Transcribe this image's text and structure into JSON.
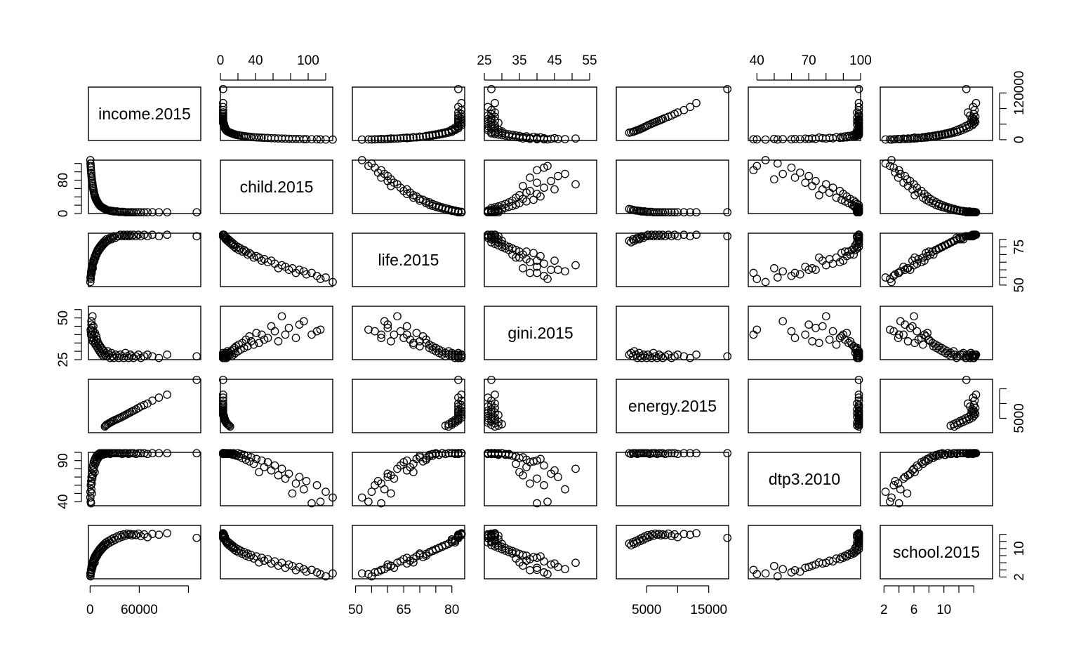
{
  "chart_data": {
    "type": "scatter",
    "kind": "scatterplot-matrix",
    "variables": [
      "income.2015",
      "child.2015",
      "life.2015",
      "gini.2015",
      "energy.2015",
      "dtp3.2010",
      "school.2015"
    ],
    "ranges": {
      "income.2015": [
        -2000,
        135000
      ],
      "child.2015": [
        0,
        128
      ],
      "life.2015": [
        49,
        84
      ],
      "gini.2015": [
        25,
        57
      ],
      "energy.2015": [
        120,
        18200
      ],
      "dtp3.2010": [
        35,
        100
      ],
      "school.2015": [
        1.5,
        16.5
      ]
    },
    "axis_ticks": {
      "income.2015": {
        "side": "bottom",
        "values": [
          0,
          60000,
          120000
        ],
        "labels": [
          "0",
          "60000",
          ""
        ]
      },
      "child.2015": {
        "side": "top",
        "values": [
          0,
          20,
          40,
          60,
          80,
          100,
          120
        ],
        "labels": [
          "0",
          "",
          "40",
          "",
          "",
          "100",
          ""
        ]
      },
      "life.2015": {
        "side": "bottom",
        "values": [
          50,
          55,
          60,
          65,
          70,
          75,
          80
        ],
        "labels": [
          "50",
          "",
          "",
          "65",
          "",
          "",
          "80"
        ]
      },
      "gini.2015": {
        "side": "top",
        "values": [
          25,
          30,
          35,
          40,
          45,
          50,
          55
        ],
        "labels": [
          "25",
          "",
          "35",
          "",
          "45",
          "",
          "55"
        ]
      },
      "energy.2015": {
        "side": "bottom",
        "values": [
          5000,
          10000,
          15000
        ],
        "labels": [
          "5000",
          "",
          "15000"
        ]
      },
      "dtp3.2010": {
        "side": "top",
        "values": [
          40,
          50,
          60,
          70,
          80,
          90,
          100
        ],
        "labels": [
          "40",
          "",
          "",
          "70",
          "",
          "",
          "100"
        ]
      },
      "school.2015": {
        "side": "bottom",
        "values": [
          2,
          4,
          6,
          8,
          10,
          12,
          14
        ],
        "labels": [
          "2",
          "",
          "6",
          "",
          "10",
          "",
          ""
        ]
      }
    },
    "row_axis_ticks": {
      "income.2015": {
        "side": "right",
        "values": [
          0,
          40000,
          80000,
          120000
        ],
        "labels": [
          "0",
          "",
          "",
          "120000"
        ]
      },
      "child.2015": {
        "side": "left",
        "values": [
          0,
          20,
          40,
          60,
          80,
          100,
          120
        ],
        "labels": [
          "0",
          "",
          "",
          "",
          "80",
          "",
          ""
        ]
      },
      "life.2015": {
        "side": "right",
        "values": [
          50,
          55,
          60,
          65,
          70,
          75,
          80
        ],
        "labels": [
          "50",
          "",
          "",
          "",
          "",
          "75",
          ""
        ]
      },
      "gini.2015": {
        "side": "left",
        "values": [
          25,
          30,
          35,
          40,
          45,
          50,
          55
        ],
        "labels": [
          "25",
          "",
          "",
          "",
          "",
          "50",
          ""
        ]
      },
      "energy.2015": {
        "side": "right",
        "values": [
          5000,
          10000,
          15000
        ],
        "labels": [
          "5000",
          "",
          ""
        ]
      },
      "dtp3.2010": {
        "side": "left",
        "values": [
          40,
          50,
          60,
          70,
          80,
          90,
          100
        ],
        "labels": [
          "40",
          "",
          "",
          "",
          "",
          "90",
          ""
        ]
      },
      "school.2015": {
        "side": "right",
        "values": [
          2,
          4,
          6,
          8,
          10,
          12,
          14
        ],
        "labels": [
          "2",
          "",
          "",
          "",
          "10",
          "",
          ""
        ]
      }
    },
    "observations": [
      [
        300,
        128,
        52,
        null,
        null,
        45,
        3
      ],
      [
        500,
        120,
        55,
        null,
        null,
        52,
        2.2
      ],
      [
        700,
        114,
        54,
        43,
        null,
        40,
        2.8
      ],
      [
        900,
        110,
        56,
        42,
        null,
        60,
        3.3
      ],
      [
        1100,
        104,
        58,
        40,
        null,
        38,
        4
      ],
      [
        1300,
        98,
        57,
        null,
        null,
        65,
        3.5
      ],
      [
        1500,
        95,
        59,
        48,
        null,
        55,
        4.2
      ],
      [
        1700,
        90,
        60,
        46,
        null,
        70,
        4.8
      ],
      [
        1900,
        86,
        58,
        38,
        null,
        62,
        3.9
      ],
      [
        2100,
        82,
        61,
        null,
        null,
        50,
        5.1
      ],
      [
        2400,
        78,
        60,
        44,
        null,
        74,
        5.5
      ],
      [
        2700,
        74,
        62,
        40,
        null,
        68,
        4.6
      ],
      [
        3000,
        70,
        63,
        51,
        null,
        80,
        6
      ],
      [
        3300,
        66,
        61,
        36,
        null,
        72,
        5.2
      ],
      [
        3600,
        62,
        64,
        42,
        null,
        84,
        6.4
      ],
      [
        4000,
        58,
        66,
        45,
        null,
        78,
        5.8
      ],
      [
        4400,
        54,
        65,
        38,
        null,
        88,
        7
      ],
      [
        4800,
        50,
        67,
        37,
        null,
        82,
        6.6
      ],
      [
        5200,
        47,
        66,
        40,
        null,
        90,
        7.4
      ],
      [
        5600,
        44,
        68,
        35,
        null,
        76,
        6.1
      ],
      [
        6000,
        41,
        69,
        41,
        null,
        92,
        7.8
      ],
      [
        6500,
        38,
        68,
        34,
        null,
        86,
        7.2
      ],
      [
        7000,
        35,
        70,
        36,
        null,
        94,
        8.2
      ],
      [
        7500,
        33,
        71,
        39,
        null,
        89,
        7.6
      ],
      [
        8000,
        31,
        70,
        33,
        null,
        96,
        8.6
      ],
      [
        8600,
        29,
        72,
        37,
        null,
        91,
        8
      ],
      [
        9200,
        27,
        73,
        32,
        null,
        97,
        9
      ],
      [
        9800,
        25,
        72,
        35,
        null,
        93,
        8.5
      ],
      [
        10400,
        23,
        74,
        31,
        null,
        98,
        9.4
      ],
      [
        11000,
        21,
        73,
        34,
        null,
        95,
        8.9
      ],
      [
        11700,
        20,
        75,
        30,
        null,
        99,
        9.8
      ],
      [
        12400,
        18,
        74,
        33,
        null,
        96,
        9.3
      ],
      [
        13100,
        17,
        76,
        29,
        null,
        97,
        10.2
      ],
      [
        13800,
        16,
        75,
        32,
        null,
        98,
        9.7
      ],
      [
        14600,
        15,
        77,
        28,
        null,
        99,
        10.6
      ],
      [
        15400,
        14,
        76,
        31,
        null,
        97,
        10.1
      ],
      [
        16200,
        13,
        78,
        27,
        null,
        98,
        11
      ],
      [
        17000,
        12,
        77,
        30,
        null,
        99,
        10.5
      ],
      [
        18000,
        11,
        79,
        28,
        2200,
        99,
        11.4
      ],
      [
        19000,
        10,
        78,
        29,
        2500,
        98,
        10.9
      ],
      [
        20000,
        9,
        80,
        27,
        2800,
        99,
        11.8
      ],
      [
        21500,
        8,
        79,
        30,
        3000,
        99,
        11.3
      ],
      [
        23000,
        7,
        80,
        28,
        3300,
        99,
        12.2
      ],
      [
        24500,
        7,
        81,
        26,
        3500,
        98,
        11.7
      ],
      [
        26000,
        6,
        80,
        29,
        3800,
        99,
        12.6
      ],
      [
        27500,
        6,
        81,
        27,
        4000,
        99,
        12.1
      ],
      [
        29000,
        5,
        82,
        26,
        4200,
        99,
        13
      ],
      [
        31000,
        5,
        81,
        28,
        4500,
        99,
        12.5
      ],
      [
        33000,
        5,
        82,
        27,
        4700,
        99,
        13.4
      ],
      [
        35000,
        4,
        82,
        26,
        5000,
        99,
        12.9
      ],
      [
        37000,
        4,
        83,
        28,
        5200,
        99,
        13.8
      ],
      [
        39000,
        4,
        82,
        27,
        5500,
        98,
        13.3
      ],
      [
        41000,
        4,
        83,
        26,
        5800,
        99,
        14
      ],
      [
        43000,
        3,
        82,
        29,
        6100,
        99,
        13.6
      ],
      [
        45000,
        3,
        83,
        27,
        6400,
        99,
        14.2
      ],
      [
        47000,
        3,
        82,
        26,
        6700,
        98,
        13.9
      ],
      [
        49000,
        3,
        83,
        28,
        7000,
        99,
        14.1
      ],
      [
        51000,
        3,
        82,
        27,
        7300,
        99,
        13.7
      ],
      [
        53000,
        3,
        83,
        26,
        7600,
        99,
        14
      ],
      [
        56000,
        3,
        82,
        27,
        8000,
        98,
        13.8
      ],
      [
        59000,
        3,
        83,
        28,
        8500,
        99,
        14.2
      ],
      [
        62000,
        3,
        82,
        26,
        9000,
        99,
        13.5
      ],
      [
        66000,
        3,
        83,
        27,
        9500,
        99,
        14
      ],
      [
        70000,
        3,
        82,
        28,
        10000,
        98,
        13.2
      ],
      [
        76000,
        3,
        83,
        27,
        11000,
        99,
        14.1
      ],
      [
        84000,
        3,
        82,
        26,
        12000,
        99,
        13.9
      ],
      [
        94000,
        3,
        83,
        28,
        13000,
        99,
        14.3
      ],
      [
        130000,
        3,
        82,
        27,
        18000,
        99,
        13
      ]
    ]
  }
}
